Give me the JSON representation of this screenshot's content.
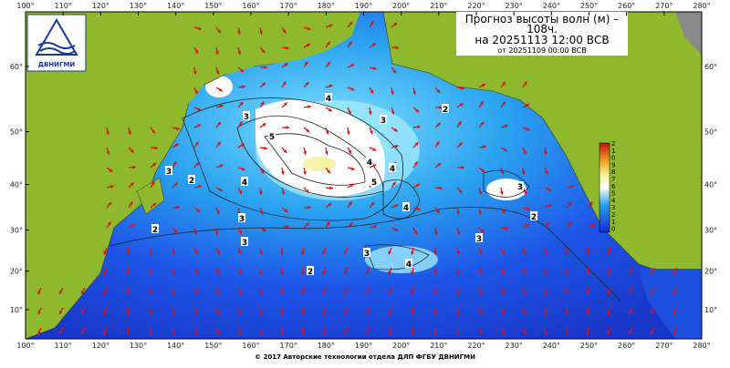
{
  "header": {
    "title_lines": [
      "Прогноз высоты волн (м) –",
      "108ч.",
      "на 20251113 12:00 ВСВ",
      "от 20251109 00:00 ВСВ"
    ],
    "logo": "ДВНИГМИ"
  },
  "map": {
    "lon_ticks": [
      {
        "value": 100,
        "label": "100°"
      },
      {
        "value": 110,
        "label": "110°"
      },
      {
        "value": 120,
        "label": "120°"
      },
      {
        "value": 130,
        "label": "130°"
      },
      {
        "value": 140,
        "label": "140°"
      },
      {
        "value": 150,
        "label": "150°"
      },
      {
        "value": 160,
        "label": "160°"
      },
      {
        "value": 170,
        "label": "170°"
      },
      {
        "value": 180,
        "label": "180°"
      },
      {
        "value": 190,
        "label": "190°"
      },
      {
        "value": 200,
        "label": "200°"
      },
      {
        "value": 210,
        "label": "210°"
      },
      {
        "value": 220,
        "label": "220°"
      },
      {
        "value": 230,
        "label": "230°"
      },
      {
        "value": 240,
        "label": "240°"
      },
      {
        "value": 250,
        "label": "250°"
      },
      {
        "value": 260,
        "label": "260°"
      },
      {
        "value": 270,
        "label": "270°"
      },
      {
        "value": 280,
        "label": "280°"
      }
    ],
    "lat_ticks": [
      {
        "value": 60,
        "label": "60°"
      },
      {
        "value": 50,
        "label": "50°"
      },
      {
        "value": 40,
        "label": "40°"
      },
      {
        "value": 30,
        "label": "30°"
      },
      {
        "value": 20,
        "label": "20°"
      },
      {
        "value": 10,
        "label": "10°"
      }
    ],
    "contour_labels": [
      "3",
      "4",
      "5",
      "4",
      "3",
      "2",
      "3",
      "4",
      "5",
      "4",
      "3",
      "4",
      "3",
      "2",
      "2",
      "3",
      "2",
      "3",
      "4",
      "2",
      "3"
    ],
    "colorbar_labels": [
      "2",
      "1",
      "0",
      "9",
      "8",
      "7",
      "6",
      "5",
      "4",
      "3",
      "2",
      "1",
      "0"
    ]
  },
  "footer": "© 2017 Авторские технологии отдела ДЛП ФГБУ ДВНИГМИ"
}
